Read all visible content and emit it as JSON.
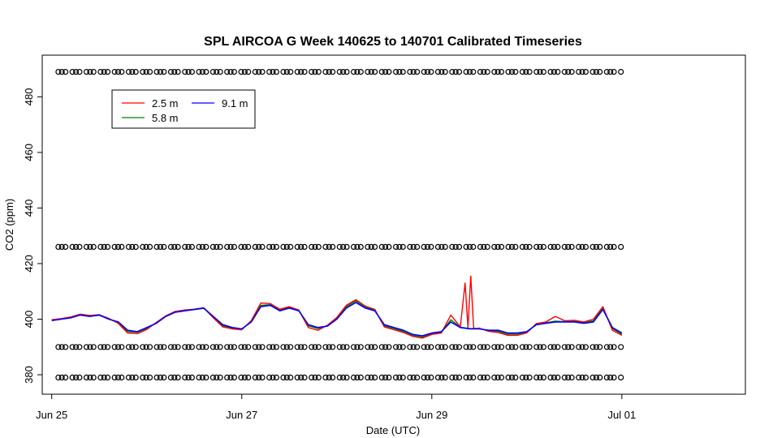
{
  "chart_data": {
    "type": "line",
    "title": "SPL AIRCOA G  Week 140625 to 140701  Calibrated Timeseries",
    "xlabel": "Date (UTC)",
    "ylabel": "CO2 (ppm)",
    "x_unit": "days since Jun 25 00:00 UTC",
    "xlim": [
      -0.1,
      7.3
    ],
    "ylim": [
      373,
      495
    ],
    "x_ticks": [
      {
        "value": 0,
        "label": "Jun 25"
      },
      {
        "value": 2,
        "label": "Jun 27"
      },
      {
        "value": 4,
        "label": "Jun 29"
      },
      {
        "value": 6,
        "label": "Jul 01"
      }
    ],
    "y_ticks": [
      {
        "value": 380,
        "label": "380"
      },
      {
        "value": 400,
        "label": "400"
      },
      {
        "value": 420,
        "label": "420"
      },
      {
        "value": 440,
        "label": "440"
      },
      {
        "value": 460,
        "label": "460"
      },
      {
        "value": 480,
        "label": "480"
      }
    ],
    "legend": {
      "position": "top-left",
      "entries": [
        {
          "name": "2.5 m",
          "color": "#ff0000"
        },
        {
          "name": "5.8 m",
          "color": "#008000"
        },
        {
          "name": "9.1 m",
          "color": "#0000ff"
        }
      ]
    },
    "reference_levels": [
      {
        "y": 489,
        "marker": "o"
      },
      {
        "y": 426,
        "marker": "o"
      },
      {
        "y": 390,
        "marker": "o"
      },
      {
        "y": 379,
        "marker": "o"
      }
    ],
    "series": [
      {
        "name": "9.1 m",
        "color": "#0000ff",
        "x": [
          0.0,
          0.1,
          0.2,
          0.3,
          0.4,
          0.5,
          0.6,
          0.7,
          0.8,
          0.9,
          1.0,
          1.1,
          1.2,
          1.3,
          1.4,
          1.5,
          1.6,
          1.7,
          1.8,
          1.9,
          2.0,
          2.1,
          2.2,
          2.3,
          2.4,
          2.5,
          2.6,
          2.7,
          2.8,
          2.9,
          3.0,
          3.1,
          3.2,
          3.3,
          3.4,
          3.5,
          3.6,
          3.7,
          3.8,
          3.9,
          4.0,
          4.1,
          4.2,
          4.3,
          4.4,
          4.5,
          4.6,
          4.7,
          4.8,
          4.9,
          5.0,
          5.1,
          5.2,
          5.3,
          5.4,
          5.5,
          5.6,
          5.7,
          5.8,
          5.9,
          6.0
        ],
        "y": [
          399.5,
          400,
          400.5,
          401.5,
          401,
          401.5,
          400,
          399,
          396,
          395.5,
          397,
          398.5,
          401,
          402.5,
          403,
          403.5,
          404,
          401,
          398,
          397,
          396.5,
          399,
          404.5,
          405,
          403,
          404,
          403,
          398,
          397,
          397.5,
          400,
          404,
          406,
          404,
          403,
          398,
          397,
          396,
          394.5,
          394,
          395,
          395.5,
          399,
          397,
          396.5,
          396.5,
          396,
          396,
          395,
          395,
          395.5,
          398,
          398.5,
          399,
          399,
          399,
          398.5,
          399,
          403.5,
          397,
          395
        ]
      },
      {
        "name": "5.8 m",
        "color": "#008000",
        "x": [
          0.0,
          0.1,
          0.2,
          0.3,
          0.4,
          0.5,
          0.6,
          0.7,
          0.8,
          0.9,
          1.0,
          1.1,
          1.2,
          1.3,
          1.4,
          1.5,
          1.6,
          1.7,
          1.8,
          1.9,
          2.0,
          2.1,
          2.2,
          2.3,
          2.4,
          2.5,
          2.6,
          2.7,
          2.8,
          2.9,
          3.0,
          3.1,
          3.2,
          3.3,
          3.4,
          3.5,
          3.6,
          3.7,
          3.8,
          3.9,
          4.0,
          4.1,
          4.2,
          4.3,
          4.4,
          4.5,
          4.6,
          4.7,
          4.8,
          4.9,
          5.0,
          5.1,
          5.2,
          5.3,
          5.4,
          5.5,
          5.6,
          5.7,
          5.8,
          5.9,
          6.0
        ],
        "y": [
          399.7,
          400.1,
          400.6,
          401.6,
          401.1,
          401.4,
          400.1,
          398.8,
          395.5,
          395.3,
          396.6,
          398.6,
          401,
          402.6,
          403.1,
          403.4,
          403.9,
          400.8,
          397.6,
          396.8,
          396.4,
          399.2,
          405,
          405.2,
          403.3,
          404.2,
          403.1,
          397.6,
          396.6,
          397.6,
          400.3,
          404.5,
          406.6,
          404.4,
          403.2,
          397.6,
          396.6,
          395.6,
          394.1,
          393.6,
          394.7,
          395.2,
          399.8,
          397.1,
          396.6,
          396.6,
          395.8,
          395.6,
          394.6,
          394.6,
          395.3,
          398.2,
          398.7,
          399.3,
          399.1,
          399.2,
          398.8,
          399.4,
          404,
          396.6,
          394.6
        ]
      },
      {
        "name": "2.5 m",
        "color": "#ff0000",
        "x": [
          0.0,
          0.1,
          0.2,
          0.3,
          0.4,
          0.5,
          0.6,
          0.7,
          0.8,
          0.9,
          1.0,
          1.1,
          1.2,
          1.3,
          1.4,
          1.5,
          1.6,
          1.7,
          1.8,
          1.9,
          2.0,
          2.1,
          2.2,
          2.3,
          2.4,
          2.5,
          2.6,
          2.7,
          2.8,
          2.9,
          3.0,
          3.1,
          3.2,
          3.3,
          3.4,
          3.5,
          3.6,
          3.7,
          3.8,
          3.9,
          4.0,
          4.1,
          4.2,
          4.3,
          4.35,
          4.38,
          4.41,
          4.44,
          4.47,
          4.5,
          4.6,
          4.7,
          4.8,
          4.9,
          5.0,
          5.1,
          5.2,
          5.3,
          5.4,
          5.5,
          5.6,
          5.7,
          5.8,
          5.9,
          6.0
        ],
        "y": [
          399.8,
          400.2,
          400.8,
          401.8,
          401.3,
          401.6,
          400.3,
          398.5,
          395,
          394.8,
          396.3,
          398.8,
          401.2,
          402.8,
          403.3,
          403.6,
          404.1,
          400.5,
          397.2,
          396.5,
          396.2,
          399.5,
          405.8,
          405.6,
          403.6,
          404.5,
          403.3,
          397,
          396,
          397.8,
          400.6,
          405,
          407,
          404.7,
          403.5,
          397.2,
          396.2,
          395.2,
          393.8,
          393.2,
          394.5,
          395,
          401.5,
          397.2,
          413,
          397,
          415.5,
          396.8,
          396.6,
          396.8,
          395.6,
          395.2,
          394.2,
          394.2,
          395.1,
          398.4,
          399,
          401,
          399.4,
          399.6,
          399,
          400,
          404.5,
          396,
          394.2
        ]
      }
    ]
  }
}
